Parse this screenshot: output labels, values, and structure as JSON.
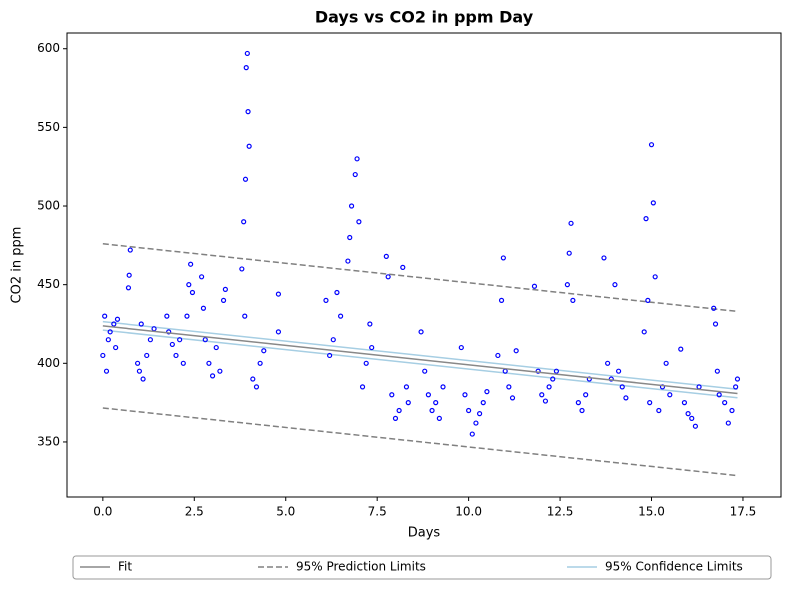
{
  "chart_data": {
    "type": "scatter",
    "title": "Days vs CO2 in ppm Day",
    "xlabel": "Days",
    "ylabel": "CO2 in ppm",
    "xlim": [
      -0.98,
      18.54
    ],
    "ylim": [
      315,
      610
    ],
    "xticks": [
      {
        "value": 0,
        "label": "0.0"
      },
      2.5,
      {
        "value": 5,
        "label": "5.0"
      },
      7.5,
      {
        "value": 10,
        "label": "10.0"
      },
      12.5,
      {
        "value": 15,
        "label": "15.0"
      },
      17.5
    ],
    "yticks": [
      350,
      400,
      450,
      500,
      550,
      600
    ],
    "series": [
      {
        "color": "#0000ff",
        "x": [
          0.0,
          0.05,
          0.1,
          0.15,
          0.2,
          0.3,
          0.35,
          0.4,
          0.7,
          0.75,
          0.72,
          0.95,
          1.0,
          1.05,
          1.1,
          1.2,
          1.3,
          1.4,
          1.75,
          1.8,
          1.9,
          2.0,
          2.1,
          2.2,
          2.3,
          2.35,
          2.4,
          2.45,
          2.7,
          2.75,
          2.8,
          2.9,
          3.0,
          3.1,
          3.2,
          3.3,
          3.35,
          3.8,
          3.85,
          3.9,
          3.92,
          3.95,
          3.97,
          4.0,
          3.88,
          4.1,
          4.2,
          4.3,
          4.4,
          4.8,
          4.8,
          6.1,
          6.2,
          6.3,
          6.4,
          6.5,
          6.7,
          6.8,
          6.9,
          6.95,
          7.0,
          6.75,
          7.1,
          7.2,
          7.3,
          7.35,
          7.75,
          7.8,
          7.9,
          8.0,
          8.1,
          8.2,
          8.3,
          8.35,
          8.7,
          8.8,
          8.9,
          9.0,
          9.1,
          9.2,
          9.3,
          9.8,
          9.9,
          10.0,
          10.1,
          10.2,
          10.3,
          10.4,
          10.5,
          10.8,
          10.9,
          10.95,
          11.0,
          11.1,
          11.2,
          11.3,
          11.8,
          11.9,
          12.0,
          12.1,
          12.2,
          12.3,
          12.4,
          12.7,
          12.75,
          12.8,
          12.85,
          13.0,
          13.1,
          13.2,
          13.3,
          13.7,
          13.8,
          13.9,
          14.0,
          14.1,
          14.2,
          14.3,
          14.8,
          14.85,
          14.9,
          15.0,
          15.05,
          15.1,
          14.95,
          15.2,
          15.3,
          15.4,
          15.5,
          15.8,
          15.9,
          16.0,
          16.1,
          16.2,
          16.3,
          16.7,
          16.75,
          16.8,
          16.85,
          17.0,
          17.1,
          17.2,
          17.3,
          17.35
        ],
        "values": [
          405,
          430,
          395,
          415,
          420,
          425,
          410,
          428,
          448,
          472,
          456,
          400,
          395,
          425,
          390,
          405,
          415,
          422,
          430,
          420,
          412,
          405,
          415,
          400,
          430,
          450,
          463,
          445,
          455,
          435,
          415,
          400,
          392,
          410,
          395,
          440,
          447,
          460,
          490,
          517,
          588,
          597,
          560,
          538,
          430,
          390,
          385,
          400,
          408,
          444,
          420,
          440,
          405,
          415,
          445,
          430,
          465,
          500,
          520,
          530,
          490,
          480,
          385,
          400,
          425,
          410,
          468,
          455,
          380,
          365,
          370,
          461,
          385,
          375,
          420,
          395,
          380,
          370,
          375,
          365,
          385,
          410,
          380,
          370,
          355,
          362,
          368,
          375,
          382,
          405,
          440,
          467,
          395,
          385,
          378,
          408,
          449,
          395,
          380,
          376,
          385,
          390,
          395,
          450,
          470,
          489,
          440,
          375,
          370,
          380,
          390,
          467,
          400,
          390,
          450,
          395,
          385,
          378,
          420,
          492,
          440,
          539,
          502,
          455,
          375,
          370,
          385,
          400,
          380,
          409,
          375,
          368,
          365,
          360,
          385,
          435,
          425,
          395,
          380,
          375,
          362,
          370,
          385,
          390
        ]
      },
      {
        "name": "Fit",
        "color": "#888888",
        "x": [
          0,
          17.35
        ],
        "values": [
          423.8,
          380.8
        ]
      },
      {
        "name": "95% Prediction Limits",
        "color": "#808080",
        "dashed": true,
        "x": [
          0,
          17.35
        ],
        "upper": [
          476,
          433
        ],
        "lower": [
          371.6,
          328.6
        ]
      },
      {
        "name": "95% Confidence Limits",
        "color": "#a6cee3",
        "x": [
          0,
          17.35
        ],
        "upper": [
          426.5,
          383.5
        ],
        "lower": [
          421.1,
          378.1
        ]
      }
    ],
    "legend": "bottom"
  }
}
